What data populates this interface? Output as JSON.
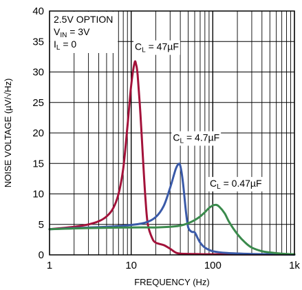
{
  "chart_data": {
    "type": "line",
    "xlabel": "FREQUENCY (Hz)",
    "ylabel": "NOISE VOLTAGE (µV/√Hz)",
    "x_scale": "log",
    "xlim": [
      1,
      1000
    ],
    "ylim": [
      0,
      40
    ],
    "grid": true,
    "x_ticks": [
      1,
      10,
      100,
      1000
    ],
    "x_tick_labels": [
      "1",
      "10",
      "100",
      "1k"
    ],
    "y_ticks": [
      0,
      5,
      10,
      15,
      20,
      25,
      30,
      35,
      40
    ],
    "y_tick_labels": [
      "0",
      "5",
      "10",
      "15",
      "20",
      "25",
      "30",
      "35",
      "40"
    ],
    "conditions": {
      "option": "2.5V OPTION",
      "vin_prefix": "V",
      "vin_sub": "IN",
      "vin_value": " = 3V",
      "il_prefix": "I",
      "il_sub": "L",
      "il_value": " = 0"
    },
    "series": [
      {
        "label_prefix": "C",
        "label_sub": "L",
        "label_value": " = 47µF",
        "color": "#a3123a",
        "points": [
          [
            1,
            4.2
          ],
          [
            2,
            4.6
          ],
          [
            3,
            5.0
          ],
          [
            4,
            5.5
          ],
          [
            5,
            6.3
          ],
          [
            6,
            7.6
          ],
          [
            7,
            10.0
          ],
          [
            8,
            14.2
          ],
          [
            9,
            21.0
          ],
          [
            10,
            27.8
          ],
          [
            11,
            31.5
          ],
          [
            11.5,
            31.2
          ],
          [
            12,
            29.5
          ],
          [
            13,
            23.0
          ],
          [
            14,
            15.5
          ],
          [
            15,
            9.0
          ],
          [
            16,
            5.0
          ],
          [
            18,
            2.8
          ],
          [
            20,
            2.0
          ],
          [
            25,
            1.6
          ],
          [
            30,
            1.0
          ],
          [
            35,
            0.4
          ],
          [
            40,
            0.2
          ],
          [
            60,
            0.15
          ],
          [
            100,
            0.1
          ],
          [
            1000,
            0.05
          ]
        ]
      },
      {
        "label_prefix": "C",
        "label_sub": "L",
        "label_value": " = 4.7µF",
        "color": "#3a5aa8",
        "points": [
          [
            1,
            4.2
          ],
          [
            2,
            4.4
          ],
          [
            5,
            4.6
          ],
          [
            10,
            4.9
          ],
          [
            15,
            5.3
          ],
          [
            20,
            6.2
          ],
          [
            25,
            8.0
          ],
          [
            30,
            11.0
          ],
          [
            35,
            14.0
          ],
          [
            38,
            14.9
          ],
          [
            40,
            14.6
          ],
          [
            43,
            12.0
          ],
          [
            47,
            7.0
          ],
          [
            50,
            4.5
          ],
          [
            55,
            3.8
          ],
          [
            60,
            3.7
          ],
          [
            65,
            2.8
          ],
          [
            70,
            2.0
          ],
          [
            80,
            1.2
          ],
          [
            100,
            0.6
          ],
          [
            150,
            0.3
          ],
          [
            300,
            0.15
          ],
          [
            1000,
            0.05
          ]
        ]
      },
      {
        "label_prefix": "C",
        "label_sub": "L",
        "label_value": " = 0.47µF",
        "color": "#3a8a4c",
        "points": [
          [
            1,
            4.2
          ],
          [
            3,
            4.4
          ],
          [
            10,
            4.5
          ],
          [
            20,
            4.5
          ],
          [
            30,
            4.6
          ],
          [
            40,
            4.8
          ],
          [
            50,
            5.2
          ],
          [
            60,
            5.7
          ],
          [
            70,
            6.3
          ],
          [
            80,
            7.0
          ],
          [
            90,
            7.7
          ],
          [
            100,
            8.1
          ],
          [
            110,
            8.2
          ],
          [
            120,
            7.9
          ],
          [
            140,
            6.8
          ],
          [
            160,
            5.3
          ],
          [
            200,
            3.4
          ],
          [
            250,
            2.0
          ],
          [
            300,
            1.2
          ],
          [
            400,
            0.6
          ],
          [
            500,
            0.4
          ],
          [
            700,
            0.2
          ],
          [
            1000,
            0.1
          ]
        ]
      }
    ]
  }
}
